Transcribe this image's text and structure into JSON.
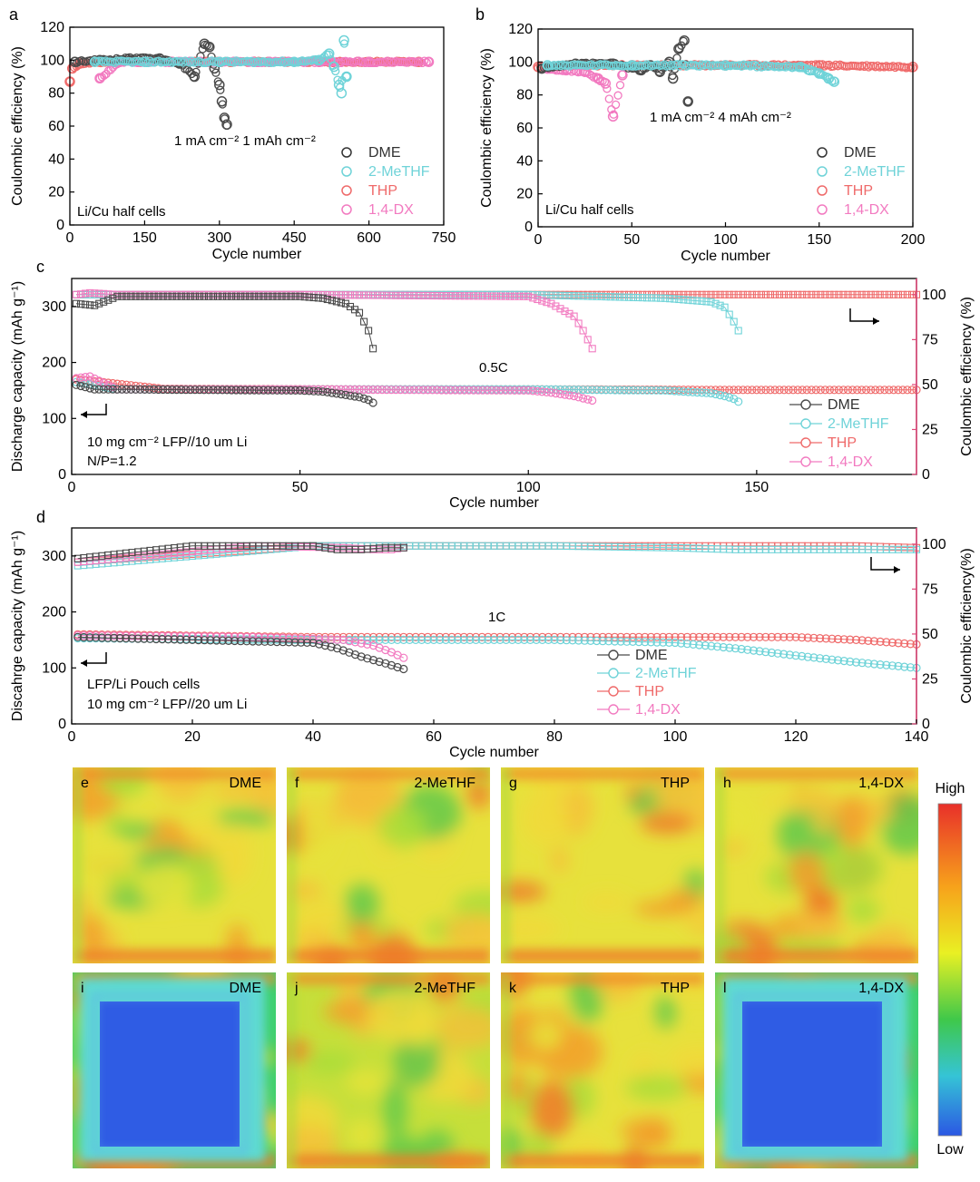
{
  "colors": {
    "DME": "#4a4a4a",
    "2-MeTHF": "#6fd3d8",
    "THP": "#ef6a6a",
    "1,4-DX": "#f27ac0",
    "axis": "#000000",
    "right_axis": "#e0487a"
  },
  "chart_data": [
    {
      "panel": "a",
      "type": "scatter",
      "xlabel": "Cycle number",
      "ylabel": "Coulombic efficiency (%)",
      "xlim": [
        0,
        750
      ],
      "ylim": [
        0,
        120
      ],
      "xticks": [
        "0",
        "150",
        "300",
        "450",
        "600",
        "750"
      ],
      "yticks": [
        "0",
        "20",
        "40",
        "60",
        "80",
        "100",
        "120"
      ],
      "annotation": "1 mA cm⁻² 1 mAh cm⁻²",
      "corner_text": "Li/Cu half cells",
      "series": [
        {
          "name": "DME",
          "x": [
            10,
            60,
            120,
            180,
            220,
            250,
            270,
            280,
            290,
            300,
            305,
            310,
            315
          ],
          "y": [
            99,
            100,
            101,
            101,
            98,
            90,
            110,
            108,
            95,
            85,
            75,
            65,
            61
          ]
        },
        {
          "name": "2-MeTHF",
          "x": [
            50,
            150,
            300,
            450,
            500,
            520,
            530,
            540,
            545,
            550,
            555
          ],
          "y": [
            99,
            99,
            99,
            99,
            100,
            104,
            96,
            85,
            80,
            112,
            90
          ]
        },
        {
          "name": "THP",
          "x": [
            0,
            5,
            20,
            100,
            200,
            300,
            400,
            500,
            600,
            700
          ],
          "y": [
            87,
            95,
            98,
            99,
            99,
            99,
            99,
            99,
            99,
            99
          ]
        },
        {
          "name": "1,4-DX",
          "x": [
            60,
            100,
            200,
            300,
            400,
            500,
            600,
            720
          ],
          "y": [
            89,
            99,
            99,
            99,
            99,
            99,
            99,
            99
          ]
        }
      ]
    },
    {
      "panel": "b",
      "type": "scatter",
      "xlabel": "Cycle number",
      "ylabel": "Coulombic efficiency (%)",
      "xlim": [
        0,
        200
      ],
      "ylim": [
        0,
        120
      ],
      "xticks": [
        "0",
        "50",
        "100",
        "150",
        "200"
      ],
      "yticks": [
        "0",
        "20",
        "40",
        "60",
        "80",
        "100",
        "120"
      ],
      "annotation": "1 mA cm⁻² 4 mAh cm⁻²",
      "corner_text": "Li/Cu half cells",
      "series": [
        {
          "name": "DME",
          "x": [
            2,
            20,
            40,
            55,
            60,
            65,
            70,
            72,
            75,
            78,
            80
          ],
          "y": [
            96,
            99,
            99,
            95,
            98,
            94,
            100,
            90,
            108,
            113,
            76
          ]
        },
        {
          "name": "2-MeTHF",
          "x": [
            5,
            50,
            100,
            140,
            145,
            150,
            155,
            158
          ],
          "y": [
            98,
            98,
            98,
            97,
            95,
            93,
            90,
            88
          ]
        },
        {
          "name": "THP",
          "x": [
            0,
            25,
            50,
            100,
            150,
            200
          ],
          "y": [
            97,
            98,
            98,
            98,
            98,
            97
          ]
        },
        {
          "name": "1,4-DX",
          "x": [
            5,
            15,
            25,
            32,
            36,
            40,
            45
          ],
          "y": [
            96,
            95,
            94,
            90,
            87,
            67,
            92
          ]
        }
      ]
    },
    {
      "panel": "c",
      "type": "line",
      "xlabel": "Cycle number",
      "ylabel": "Discharge capacity (mAh g⁻¹)",
      "y2label": "Coulombic efficiency (%)",
      "xlim": [
        0,
        185
      ],
      "ylim": [
        0,
        350
      ],
      "y2lim": [
        0,
        109
      ],
      "xticks": [
        "0",
        "50",
        "100",
        "150"
      ],
      "yticks": [
        "0",
        "100",
        "200",
        "300"
      ],
      "y2ticks": [
        "0",
        "25",
        "50",
        "75",
        "100"
      ],
      "annotation": "0.5C",
      "corner_text": [
        "10 mg cm⁻² LFP//10 um Li",
        "N/P=1.2"
      ],
      "series": [
        {
          "name": "DME",
          "x": [
            1,
            5,
            10,
            30,
            50,
            55,
            60,
            63,
            65,
            66
          ],
          "capacity": [
            160,
            152,
            152,
            151,
            150,
            148,
            142,
            138,
            133,
            128
          ],
          "ce": [
            95,
            94,
            99,
            99,
            99,
            98,
            95,
            90,
            80,
            70
          ]
        },
        {
          "name": "2-MeTHF",
          "x": [
            1,
            10,
            50,
            100,
            130,
            140,
            143,
            145,
            146
          ],
          "capacity": [
            165,
            152,
            152,
            152,
            150,
            145,
            140,
            135,
            130
          ],
          "ce": [
            100,
            100,
            100,
            100,
            98,
            96,
            93,
            85,
            80
          ]
        },
        {
          "name": "THP",
          "x": [
            1,
            20,
            60,
            100,
            140,
            185
          ],
          "capacity": [
            170,
            153,
            152,
            152,
            151,
            151
          ],
          "ce": [
            100,
            100,
            100,
            100,
            100,
            100
          ]
        },
        {
          "name": "1,4-DX",
          "x": [
            1,
            4,
            10,
            50,
            100,
            105,
            110,
            112,
            114
          ],
          "capacity": [
            172,
            175,
            152,
            152,
            150,
            146,
            140,
            136,
            132
          ],
          "ce": [
            100,
            101,
            100,
            100,
            99,
            95,
            88,
            80,
            70
          ]
        }
      ]
    },
    {
      "panel": "d",
      "type": "line",
      "xlabel": "Cycle number",
      "ylabel": "Discahrge capacity (mAh g⁻¹)",
      "y2label": "Coulombic efficiency(%)",
      "xlim": [
        0,
        140
      ],
      "ylim": [
        0,
        350
      ],
      "y2lim": [
        0,
        109
      ],
      "xticks": [
        "0",
        "20",
        "40",
        "60",
        "80",
        "100",
        "120",
        "140"
      ],
      "yticks": [
        "0",
        "100",
        "200",
        "300"
      ],
      "y2ticks": [
        "0",
        "25",
        "50",
        "75",
        "100"
      ],
      "annotation": "1C",
      "corner_text": [
        "LFP/Li Pouch cells",
        "10 mg cm⁻² LFP//20 um Li"
      ],
      "series": [
        {
          "name": "DME",
          "x": [
            1,
            20,
            40,
            44,
            48,
            52,
            55
          ],
          "capacity": [
            155,
            150,
            145,
            135,
            120,
            108,
            98
          ],
          "ce": [
            92,
            99,
            99,
            97,
            97,
            98,
            98
          ]
        },
        {
          "name": "2-MeTHF",
          "x": [
            1,
            40,
            80,
            100,
            110,
            120,
            130,
            140
          ],
          "capacity": [
            153,
            150,
            150,
            145,
            135,
            122,
            110,
            100
          ],
          "ce": [
            88,
            99,
            99,
            98,
            97,
            97,
            97,
            97
          ]
        },
        {
          "name": "THP",
          "x": [
            1,
            40,
            80,
            100,
            120,
            130,
            140
          ],
          "capacity": [
            160,
            155,
            155,
            155,
            155,
            150,
            142
          ],
          "ce": [
            90,
            99,
            99,
            99,
            99,
            99,
            98
          ]
        },
        {
          "name": "1,4-DX",
          "x": [
            1,
            30,
            45,
            50,
            53,
            55
          ],
          "capacity": [
            158,
            155,
            150,
            140,
            128,
            118
          ],
          "ce": [
            90,
            99,
            98,
            97,
            97,
            98
          ]
        }
      ]
    },
    {
      "panel": "e-l",
      "type": "heatmap",
      "scale_high": "High",
      "scale_low": "Low",
      "tiles": [
        {
          "letter": "e",
          "label": "DME",
          "uniformity": "high"
        },
        {
          "letter": "f",
          "label": "2-MeTHF",
          "uniformity": "high"
        },
        {
          "letter": "g",
          "label": "THP",
          "uniformity": "high"
        },
        {
          "letter": "h",
          "label": "1,4-DX",
          "uniformity": "high"
        },
        {
          "letter": "i",
          "label": "DME",
          "uniformity": "low-center"
        },
        {
          "letter": "j",
          "label": "2-MeTHF",
          "uniformity": "medium"
        },
        {
          "letter": "k",
          "label": "THP",
          "uniformity": "high"
        },
        {
          "letter": "l",
          "label": "1,4-DX",
          "uniformity": "low-center"
        }
      ]
    }
  ]
}
